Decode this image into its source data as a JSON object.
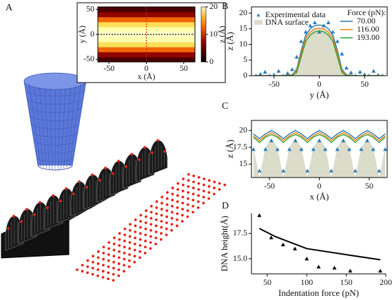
{
  "chart_data": [
    {
      "panel": "A",
      "type": "heatmap",
      "xlabel": "x (Å)",
      "ylabel": "y (Å)",
      "colorbar_label": "z (Å)",
      "y": [
        -50,
        -40,
        -30,
        -20,
        -10,
        0,
        10,
        20,
        30,
        40,
        50
      ],
      "values": [
        3,
        6,
        10,
        15,
        18,
        19,
        18,
        15,
        10,
        6,
        3
      ],
      "xlim": [
        -65,
        65
      ],
      "ylim": [
        -55,
        55
      ],
      "xticks": [
        -50,
        0,
        50
      ],
      "yticks": [
        -50,
        0,
        50
      ],
      "clim": [
        0,
        20
      ],
      "cticks": [
        0,
        10,
        20
      ],
      "vline": 0,
      "hline": 0,
      "vline_color": "#e0201b",
      "hline_color": "#000000"
    },
    {
      "panel": "B",
      "type": "line",
      "xlabel": "y (Å)",
      "ylabel": "z (Å)",
      "frame": "box",
      "xlim": [
        -75,
        75
      ],
      "ylim": [
        0,
        22
      ],
      "xticks": [
        -50,
        0,
        50
      ],
      "yticks": [
        0,
        5,
        10,
        15,
        20
      ],
      "x": [
        -70,
        -60,
        -50,
        -40,
        -30,
        -25,
        -20,
        -15,
        -10,
        -5,
        0,
        5,
        10,
        15,
        20,
        25,
        30,
        40,
        50,
        60,
        70
      ],
      "surface": {
        "name": "DNA surface",
        "color": "#dcdccb",
        "values": [
          0,
          0,
          0,
          0,
          0,
          3,
          9,
          13,
          14,
          15,
          15,
          15,
          14,
          13,
          9,
          3,
          0,
          0,
          0,
          0,
          0
        ]
      },
      "series": [
        {
          "name": "70.00",
          "color": "#1f77b4",
          "values": [
            0,
            0,
            0,
            0,
            0.3,
            2,
            8,
            13,
            15,
            16,
            16.2,
            16,
            15,
            13,
            8,
            2,
            0.3,
            0,
            0,
            0,
            0
          ]
        },
        {
          "name": "116.00",
          "color": "#ff7f0e",
          "values": [
            0,
            0,
            0,
            0,
            0.2,
            1.5,
            7,
            12,
            14,
            15,
            15.2,
            15,
            14,
            12,
            7,
            1.5,
            0.2,
            0,
            0,
            0,
            0
          ]
        },
        {
          "name": "193.00",
          "color": "#2ca02c",
          "values": [
            0,
            0,
            0,
            0,
            0.1,
            1,
            6,
            11,
            13,
            14,
            14.3,
            14,
            13,
            11,
            6,
            1,
            0.1,
            0,
            0,
            0,
            0
          ]
        }
      ],
      "scatter": {
        "name": "Experimental data",
        "color": "#2b7bba",
        "x": [
          -70,
          -65,
          -60,
          -55,
          -50,
          -45,
          -40,
          -35,
          -30,
          -25,
          -20,
          -15,
          -10,
          -5,
          0,
          5,
          10,
          15,
          20,
          25,
          30,
          35,
          40,
          45,
          50,
          55,
          60,
          65,
          70
        ],
        "values": [
          0,
          0.5,
          1.2,
          0,
          0.3,
          1.5,
          0,
          0.8,
          2,
          6,
          11,
          14,
          16,
          17,
          14,
          16,
          17,
          14,
          11,
          7,
          2.5,
          1,
          0,
          1.2,
          0.4,
          0,
          1.5,
          0.2,
          0
        ]
      },
      "legend_title": "Force (pN):"
    },
    {
      "panel": "C",
      "type": "line",
      "xlabel": "x (Å)",
      "ylabel": "z (Å)",
      "frame": "box",
      "xlim": [
        -68,
        68
      ],
      "ylim": [
        13,
        21.5
      ],
      "xticks": [
        -50,
        0,
        50
      ],
      "yticks": [
        15,
        17.5,
        20
      ],
      "x": [
        -66,
        -60,
        -54,
        -48,
        -42,
        -36,
        -30,
        -24,
        -18,
        -12,
        -6,
        0,
        6,
        12,
        18,
        24,
        30,
        36,
        42,
        48,
        54,
        60,
        66
      ],
      "surface": {
        "color": "#dcdccb",
        "values": [
          17.5,
          13,
          17.5,
          18.8,
          17.5,
          13,
          17.5,
          18.8,
          17.5,
          13,
          17.5,
          18.8,
          17.5,
          13,
          17.5,
          18.8,
          17.5,
          13,
          17.5,
          18.8,
          17.5,
          13,
          17.5
        ]
      },
      "series": [
        {
          "color": "#1f77b4",
          "values": [
            19.5,
            18.8,
            19.5,
            20.0,
            19.5,
            18.8,
            19.5,
            20.0,
            19.5,
            18.8,
            19.5,
            20.0,
            19.5,
            18.8,
            19.5,
            20.0,
            19.5,
            18.8,
            19.5,
            20.0,
            19.5,
            18.8,
            19.5
          ]
        },
        {
          "color": "#ff7f0e",
          "values": [
            19.2,
            18.5,
            19.2,
            19.7,
            19.2,
            18.5,
            19.2,
            19.7,
            19.2,
            18.5,
            19.2,
            19.7,
            19.2,
            18.5,
            19.2,
            19.7,
            19.2,
            18.5,
            19.2,
            19.7,
            19.2,
            18.5,
            19.2
          ]
        },
        {
          "color": "#2ca02c",
          "values": [
            19.0,
            18.2,
            19.0,
            19.4,
            19.0,
            18.2,
            19.0,
            19.4,
            19.0,
            18.2,
            19.0,
            19.4,
            19.0,
            18.2,
            19.0,
            19.4,
            19.0,
            18.2,
            19.0,
            19.4,
            19.0,
            18.2,
            19.0
          ]
        }
      ],
      "scatter": {
        "color": "#2b7bba",
        "x": [
          -66,
          -60,
          -54,
          -48,
          -42,
          -36,
          -30,
          -24,
          -18,
          -12,
          -6,
          0,
          6,
          12,
          18,
          24,
          30,
          36,
          42,
          48,
          54,
          60,
          66
        ],
        "values": [
          17.2,
          14.0,
          17.2,
          18.5,
          17.2,
          14.0,
          17.2,
          18.5,
          17.2,
          14.0,
          17.2,
          18.5,
          17.2,
          14.0,
          17.2,
          18.5,
          17.2,
          14.0,
          17.2,
          18.5,
          17.2,
          14.0,
          17.2
        ]
      }
    },
    {
      "panel": "D",
      "type": "line",
      "xlabel": "Indentation force (pN)",
      "ylabel": "DNA height(Å)",
      "frame": "open",
      "xlim": [
        30,
        200
      ],
      "ylim": [
        13.5,
        19.5
      ],
      "xticks": [
        50,
        100,
        150,
        200
      ],
      "yticks": [
        {
          "value": 15,
          "label": "15.0"
        },
        {
          "value": 17.5,
          "label": "17.5"
        }
      ],
      "x": [
        40,
        60,
        80,
        100,
        150,
        193
      ],
      "series": [
        {
          "color": "#000000",
          "values": [
            18,
            17.2,
            16.6,
            16.0,
            15.4,
            14.9
          ]
        }
      ],
      "scatter": {
        "color": "#000000",
        "x": [
          40,
          55,
          70,
          85,
          100,
          115,
          135,
          155,
          193
        ],
        "values": [
          19.3,
          17.1,
          16.4,
          16.0,
          15.0,
          14.2,
          14.1,
          13.8,
          13.8
        ]
      }
    }
  ]
}
